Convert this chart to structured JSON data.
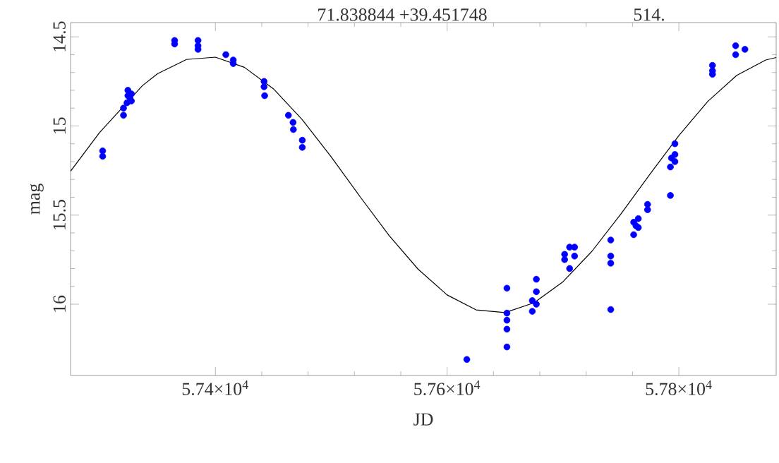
{
  "chart_data": {
    "type": "scatter",
    "xlabel": "JD",
    "ylabel": "mag",
    "annotations": [
      "71.838844 +39.451748",
      "514."
    ],
    "xlim": [
      57275,
      57884
    ],
    "ylim": [
      16.4,
      14.42
    ],
    "xticks": [
      {
        "value": 57400,
        "label": "5.74×10$^{4}$"
      },
      {
        "value": 57600,
        "label": "5.76×10$^{4}$"
      },
      {
        "value": 57800,
        "label": "5.78×10$^{4}$"
      }
    ],
    "yticks": [
      14.5,
      15,
      15.5,
      16
    ],
    "grid": false,
    "series": [
      {
        "marker": "circle",
        "color": "#0000ff",
        "x": [
          57302.7,
          57302.7,
          57320.7,
          57320.7,
          57323.7,
          57324.5,
          57324.5,
          57327.5,
          57327.5,
          57326.2,
          57364.8,
          57364.8,
          57385,
          57385,
          57385,
          57409,
          57415.4,
          57415.4,
          57442,
          57442,
          57442.5,
          57463,
          57467,
          57467.3,
          57475,
          57475,
          57617,
          57651.6,
          57651.6,
          57651.6,
          57651.6,
          57651.6,
          57673.5,
          57673.5,
          57677,
          57677,
          57677,
          57701.4,
          57701.4,
          57705.7,
          57710,
          57710,
          57705.7,
          57741.2,
          57741.2,
          57741.2,
          57741.2,
          57761,
          57761,
          57765,
          57765,
          57763,
          57773,
          57773,
          57792.7,
          57792.7,
          57793.6,
          57796.6,
          57796.6,
          57796.6,
          57829,
          57829,
          57829,
          57849,
          57849,
          57857
        ],
        "values": [
          15.14,
          15.17,
          14.94,
          14.9,
          14.87,
          14.8,
          14.83,
          14.82,
          14.86,
          14.84,
          14.52,
          14.54,
          14.52,
          14.55,
          14.57,
          14.6,
          14.63,
          14.65,
          14.75,
          14.78,
          14.83,
          14.94,
          14.98,
          15.02,
          15.08,
          15.12,
          16.31,
          15.91,
          16.05,
          16.09,
          16.14,
          16.24,
          15.98,
          16.04,
          15.86,
          15.93,
          16.0,
          15.72,
          15.75,
          15.8,
          15.68,
          15.73,
          15.68,
          15.64,
          15.73,
          15.77,
          16.03,
          15.61,
          15.54,
          15.52,
          15.57,
          15.56,
          15.47,
          15.44,
          15.39,
          15.23,
          15.18,
          15.1,
          15.16,
          15.2,
          14.66,
          14.71,
          14.69,
          14.55,
          14.6,
          14.57
        ]
      },
      {
        "type": "line",
        "marker": "none",
        "line_style": "solid",
        "color": "#000000",
        "x": [
          57275,
          57300,
          57337,
          57350,
          57375,
          57400,
          57425,
          57450,
          57475,
          57500,
          57525,
          57550,
          57575,
          57600,
          57625,
          57650,
          57675,
          57700,
          57725,
          57750,
          57775,
          57800,
          57825,
          57850,
          57875,
          57884
        ],
        "values": [
          15.254,
          15.037,
          14.774,
          14.707,
          14.627,
          14.614,
          14.671,
          14.791,
          14.965,
          15.174,
          15.398,
          15.615,
          15.804,
          15.948,
          16.032,
          16.047,
          15.992,
          15.874,
          15.703,
          15.494,
          15.271,
          15.054,
          14.862,
          14.716,
          14.63,
          14.616
        ]
      }
    ]
  }
}
